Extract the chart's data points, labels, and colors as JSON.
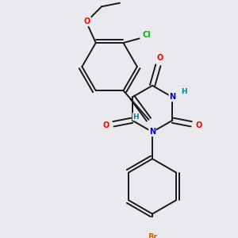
{
  "background_color": "#eaeaee",
  "bond_color": "#1a1a1a",
  "atom_colors": {
    "O": "#ff0000",
    "N": "#0000cc",
    "Br": "#cc6600",
    "Cl": "#00bb00",
    "H": "#008888",
    "C": "#1a1a1a"
  }
}
